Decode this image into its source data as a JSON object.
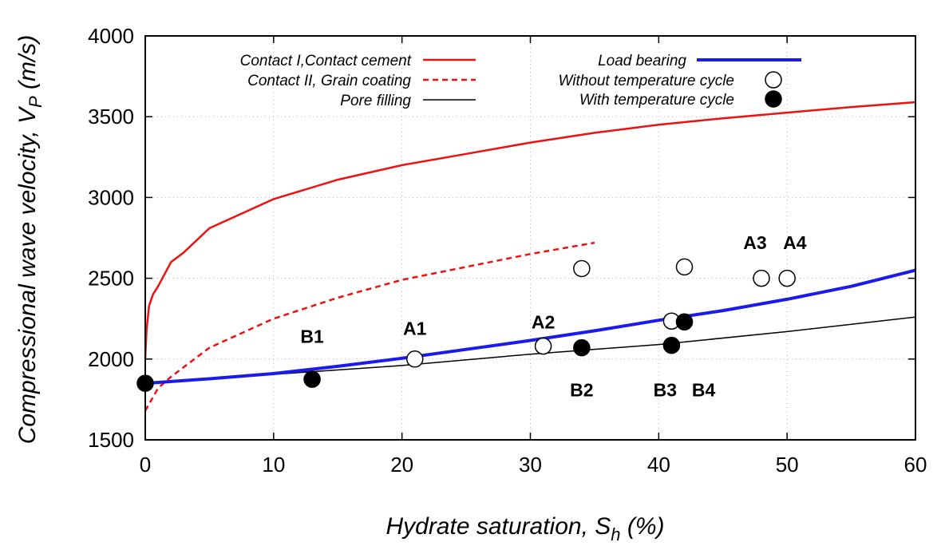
{
  "chart_data": {
    "type": "line",
    "xlabel": {
      "main": "Hydrate saturation, S",
      "sub": "h",
      "tail": " (%)"
    },
    "ylabel": {
      "main": "Compressional wave velocity, V",
      "sub": "P",
      "tail": " (m/s)"
    },
    "xlim": [
      0,
      60
    ],
    "ylim": [
      1500,
      4000
    ],
    "x_ticks": [
      0,
      10,
      20,
      30,
      40,
      50,
      60
    ],
    "y_ticks": [
      1500,
      2000,
      2500,
      3000,
      3500,
      4000
    ],
    "grid": true,
    "legend_position": "top",
    "series": [
      {
        "name": "Contact I,Contact cement",
        "style": "solid",
        "color": "#ee1111",
        "width": 2.5,
        "x": [
          0,
          0.1,
          0.3,
          0.6,
          1,
          2,
          3,
          5,
          10,
          15,
          20,
          25,
          30,
          35,
          40,
          45,
          50,
          55,
          60
        ],
        "y": [
          2000,
          2180,
          2330,
          2400,
          2450,
          2600,
          2660,
          2810,
          2990,
          3110,
          3200,
          3270,
          3340,
          3400,
          3450,
          3490,
          3525,
          3560,
          3590
        ]
      },
      {
        "name": "Contact II, Grain coating",
        "style": "dashed",
        "color": "#ee1111",
        "width": 2.5,
        "x": [
          0,
          1,
          2,
          5,
          10,
          15,
          20,
          25,
          30,
          35
        ],
        "y": [
          1680,
          1820,
          1890,
          2070,
          2250,
          2380,
          2490,
          2570,
          2650,
          2720
        ]
      },
      {
        "name": "Pore filling",
        "style": "solid",
        "color": "#000000",
        "width": 1.5,
        "x": [
          0,
          10,
          20,
          30,
          40,
          50,
          60
        ],
        "y": [
          1850,
          1905,
          1960,
          2030,
          2090,
          2170,
          2260
        ]
      },
      {
        "name": "Load bearing",
        "style": "solid",
        "color": "#1a1aee",
        "width": 4,
        "x": [
          0,
          5,
          10,
          15,
          20,
          25,
          30,
          35,
          40,
          45,
          50,
          55,
          60
        ],
        "y": [
          1850,
          1878,
          1910,
          1955,
          2005,
          2060,
          2115,
          2175,
          2240,
          2300,
          2370,
          2450,
          2550
        ]
      }
    ],
    "points": [
      {
        "name": "Without temperature cycle",
        "filled": false,
        "x": [
          21,
          31,
          34,
          41,
          42,
          48,
          50
        ],
        "y": [
          2000,
          2080,
          2560,
          2235,
          2570,
          2500,
          2500
        ]
      },
      {
        "name": "With temperature cycle",
        "filled": true,
        "x": [
          0,
          13,
          34,
          41,
          42
        ],
        "y": [
          1850,
          1875,
          2070,
          2085,
          2230
        ]
      }
    ],
    "annotations": [
      {
        "text": "B1",
        "x": 13,
        "y": 2100
      },
      {
        "text": "A1",
        "x": 21,
        "y": 2150
      },
      {
        "text": "A2",
        "x": 31,
        "y": 2190
      },
      {
        "text": "B2",
        "x": 34,
        "y": 1770
      },
      {
        "text": "B3",
        "x": 40.5,
        "y": 1770
      },
      {
        "text": "B4",
        "x": 43.5,
        "y": 1770
      },
      {
        "text": "A3",
        "x": 47.5,
        "y": 2680
      },
      {
        "text": "A4",
        "x": 50.6,
        "y": 2680
      }
    ]
  }
}
